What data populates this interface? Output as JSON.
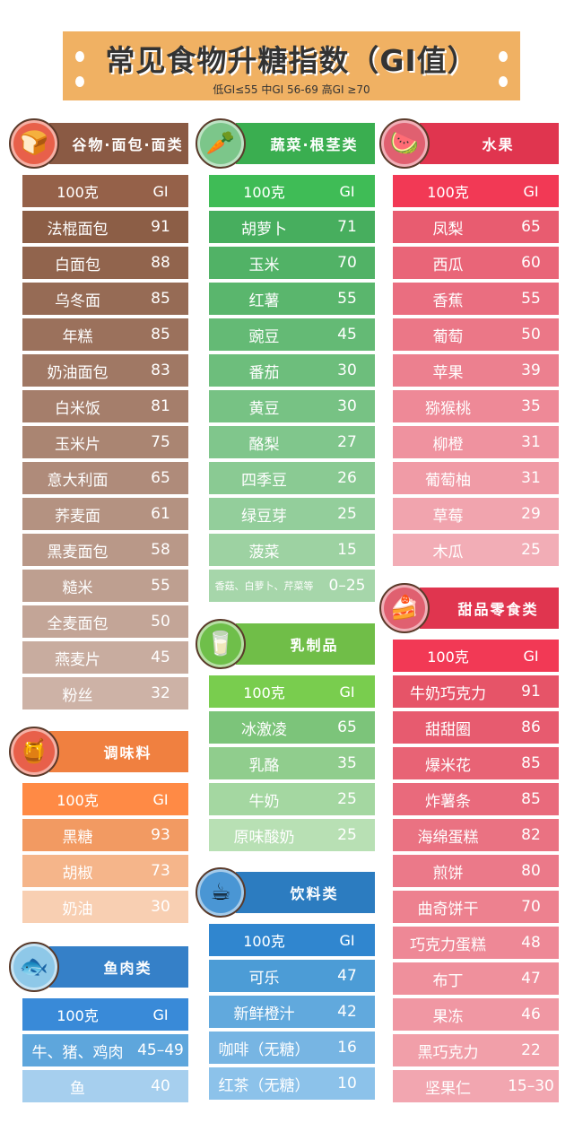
{
  "title": "常见食物升糖指数（GI值）",
  "subtitle": "低GI≤55  中GI 56-69  高GI ≥70",
  "banner_color": "#f0b163",
  "sections": [
    {
      "id": "grains",
      "title": "谷物·面包·面类",
      "icon": "bread-icon",
      "glyph": "🍞",
      "circle": "#e8604a",
      "header_color": "#8a5a44",
      "row_from": "#8c5e46",
      "row_to": "#cdb2a6",
      "col_header": [
        "100克",
        "GI"
      ],
      "rows": [
        [
          "法棍面包",
          "91"
        ],
        [
          "白面包",
          "88"
        ],
        [
          "乌冬面",
          "85"
        ],
        [
          "年糕",
          "85"
        ],
        [
          "奶油面包",
          "83"
        ],
        [
          "白米饭",
          "81"
        ],
        [
          "玉米片",
          "75"
        ],
        [
          "意大利面",
          "65"
        ],
        [
          "荞麦面",
          "61"
        ],
        [
          "黑麦面包",
          "58"
        ],
        [
          "糙米",
          "55"
        ],
        [
          "全麦面包",
          "50"
        ],
        [
          "燕麦片",
          "45"
        ],
        [
          "粉丝",
          "32"
        ]
      ]
    },
    {
      "id": "condiments",
      "title": "调味料",
      "icon": "jar-icon",
      "glyph": "🍯",
      "circle": "#e8604a",
      "header_color": "#f08040",
      "row_from": "#f29a62",
      "row_to": "#f8cfb2",
      "col_header": [
        "100克",
        "GI"
      ],
      "rows": [
        [
          "黑糖",
          "93"
        ],
        [
          "胡椒",
          "73"
        ],
        [
          "奶油",
          "30"
        ]
      ]
    },
    {
      "id": "meat",
      "title": "鱼肉类",
      "icon": "fish-icon",
      "glyph": "🐟",
      "circle": "#8ec8e8",
      "header_color": "#3580c8",
      "row_from": "#5ea6dc",
      "row_to": "#a6cfee",
      "col_header": [
        "100克",
        "GI"
      ],
      "rows": [
        [
          "牛、猪、鸡肉",
          "45–49"
        ],
        [
          "鱼",
          "40"
        ]
      ]
    },
    {
      "id": "vegetables",
      "title": "蔬菜·根茎类",
      "icon": "carrot-icon",
      "glyph": "🥕",
      "circle": "#7cc68a",
      "header_color": "#3aae50",
      "row_from": "#47ae5e",
      "row_to": "#a6d6aa",
      "col_header": [
        "100克",
        "GI"
      ],
      "rows": [
        [
          "胡萝卜",
          "71"
        ],
        [
          "玉米",
          "70"
        ],
        [
          "红薯",
          "55"
        ],
        [
          "豌豆",
          "45"
        ],
        [
          "番茄",
          "30"
        ],
        [
          "黄豆",
          "30"
        ],
        [
          "酪梨",
          "27"
        ],
        [
          "四季豆",
          "26"
        ],
        [
          "绿豆芽",
          "25"
        ],
        [
          "菠菜",
          "15"
        ],
        [
          "香菇、白萝卜、芹菜等",
          "0–25"
        ]
      ]
    },
    {
      "id": "dairy",
      "title": "乳制品",
      "icon": "milk-carton-icon",
      "glyph": "🥛",
      "circle": "#6fbf4a",
      "header_color": "#70be48",
      "row_from": "#7cc47a",
      "row_to": "#b8e0b4",
      "col_header": [
        "100克",
        "GI"
      ],
      "rows": [
        [
          "冰激凌",
          "65"
        ],
        [
          "乳酪",
          "35"
        ],
        [
          "牛奶",
          "25"
        ],
        [
          "原味酸奶",
          "25"
        ]
      ]
    },
    {
      "id": "drinks",
      "title": "饮料类",
      "icon": "coffee-cup-icon",
      "glyph": "☕",
      "circle": "#4a96d4",
      "header_color": "#2c7cc0",
      "row_from": "#4c9cd6",
      "row_to": "#8cc2ea",
      "col_header": [
        "100克",
        "GI"
      ],
      "rows": [
        [
          "可乐",
          "47"
        ],
        [
          "新鲜橙汁",
          "42"
        ],
        [
          "咖啡（无糖）",
          "16"
        ],
        [
          "红茶（无糖）",
          "10"
        ]
      ]
    },
    {
      "id": "fruits",
      "title": "水果",
      "icon": "watermelon-icon",
      "glyph": "🍉",
      "circle": "#e06070",
      "header_color": "#e0354f",
      "row_from": "#e85c70",
      "row_to": "#f2adb6",
      "col_header": [
        "100克",
        "GI"
      ],
      "rows": [
        [
          "凤梨",
          "65"
        ],
        [
          "西瓜",
          "60"
        ],
        [
          "香蕉",
          "55"
        ],
        [
          "葡萄",
          "50"
        ],
        [
          "苹果",
          "39"
        ],
        [
          "猕猴桃",
          "35"
        ],
        [
          "柳橙",
          "31"
        ],
        [
          "葡萄柚",
          "31"
        ],
        [
          "草莓",
          "29"
        ],
        [
          "木瓜",
          "25"
        ]
      ]
    },
    {
      "id": "desserts",
      "title": "甜品零食类",
      "icon": "cake-icon",
      "glyph": "🍰",
      "circle": "#e06070",
      "header_color": "#e0354f",
      "row_from": "#e65468",
      "row_to": "#f2a6b0",
      "col_header": [
        "100克",
        "GI"
      ],
      "rows": [
        [
          "牛奶巧克力",
          "91"
        ],
        [
          "甜甜圈",
          "86"
        ],
        [
          "爆米花",
          "85"
        ],
        [
          "炸薯条",
          "85"
        ],
        [
          "海绵蛋糕",
          "82"
        ],
        [
          "煎饼",
          "80"
        ],
        [
          "曲奇饼干",
          "70"
        ],
        [
          "巧克力蛋糕",
          "48"
        ],
        [
          "布丁",
          "47"
        ],
        [
          "果冻",
          "46"
        ],
        [
          "黑巧克力",
          "22"
        ],
        [
          "坚果仁",
          "15–30"
        ]
      ]
    }
  ]
}
